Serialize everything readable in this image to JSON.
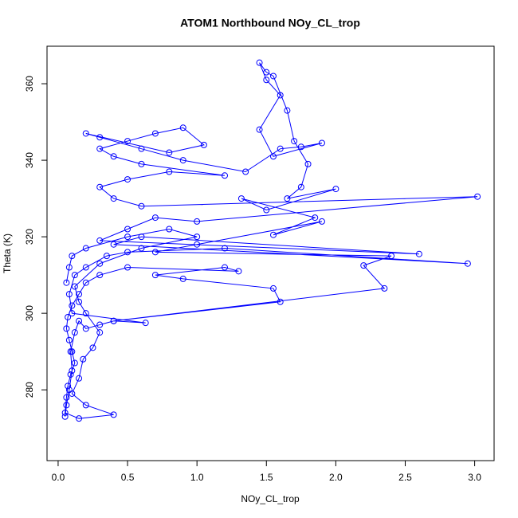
{
  "chart_data": {
    "type": "line",
    "title": "ATOM1 Northbound NOy_CL_trop",
    "x_label": "NOy_CL_trop",
    "y_label": "Theta (K)",
    "x": [
      0.05,
      0.06,
      0.08,
      0.1,
      0.09,
      0.12,
      0.15,
      0.2,
      0.3,
      0.4,
      0.63,
      0.1,
      0.08,
      0.12,
      0.2,
      0.35,
      0.5,
      1.2,
      2.95,
      0.4,
      0.6,
      2.6,
      0.3,
      0.5,
      0.7,
      1.0,
      3.02,
      0.6,
      0.4,
      0.3,
      0.5,
      0.8,
      1.2,
      0.6,
      0.4,
      0.3,
      0.5,
      0.7,
      0.9,
      1.05,
      0.8,
      0.2,
      0.3,
      0.6,
      0.9,
      1.35,
      1.6,
      1.75,
      1.9,
      1.55,
      1.45,
      1.6,
      1.5,
      1.45,
      1.5,
      1.55,
      1.65,
      1.7,
      1.8,
      1.75,
      1.65,
      2.0,
      1.5,
      1.32,
      1.85,
      1.55,
      1.9,
      1.0,
      0.7,
      2.4,
      2.2,
      2.35,
      0.4,
      1.6,
      1.55,
      0.9,
      0.7,
      1.2,
      1.3,
      0.5,
      0.3,
      0.2,
      0.15,
      0.1,
      0.07,
      0.06,
      0.08,
      0.1,
      0.12,
      0.09,
      0.07,
      0.06,
      0.05,
      0.15,
      0.4,
      0.2,
      0.1,
      0.15,
      0.18,
      0.25,
      0.3,
      0.2,
      0.15,
      0.12,
      0.3,
      0.6,
      1.0,
      0.8,
      0.5,
      0.2,
      0.1,
      0.08,
      0.06
    ],
    "series": [
      {
        "color": "#0000ff",
        "values": [
          273,
          276,
          280,
          285,
          290,
          295,
          298,
          296,
          297,
          298,
          297.5,
          300,
          305,
          310,
          312,
          315,
          316,
          317,
          313,
          318,
          320,
          315.5,
          319,
          322,
          325,
          324,
          330.5,
          328,
          330,
          333,
          335,
          337,
          336,
          339,
          341,
          343,
          345,
          347,
          348.5,
          344,
          342,
          347,
          346,
          343,
          340,
          337,
          343,
          343.5,
          344.5,
          341,
          348,
          357,
          361,
          365.5,
          363,
          362,
          353,
          345,
          339,
          333,
          330,
          332.5,
          327,
          330,
          325,
          320.5,
          324,
          318,
          316,
          315,
          312.5,
          306.5,
          298,
          303,
          306.5,
          309,
          310,
          312,
          311,
          312,
          310,
          308,
          305,
          302,
          299,
          296,
          293,
          290,
          287,
          284,
          281,
          278,
          274,
          272.5,
          273.5,
          276,
          279,
          283,
          288,
          291,
          295,
          300,
          303,
          307,
          313,
          317,
          320,
          322,
          320,
          317,
          315,
          312,
          308
        ]
      }
    ],
    "xlim": [
      -0.08,
      3.14
    ],
    "ylim": [
      261.5,
      369.8
    ],
    "xticks": [
      {
        "value": 0,
        "label": "0.0"
      },
      {
        "value": 0.5,
        "label": "0.5"
      },
      {
        "value": 1,
        "label": "1.0"
      },
      {
        "value": 1.5,
        "label": "1.5"
      },
      {
        "value": 2,
        "label": "2.0"
      },
      {
        "value": 2.5,
        "label": "2.5"
      },
      {
        "value": 3,
        "label": "3.0"
      }
    ],
    "yticks": [
      280,
      300,
      320,
      340,
      360
    ]
  }
}
